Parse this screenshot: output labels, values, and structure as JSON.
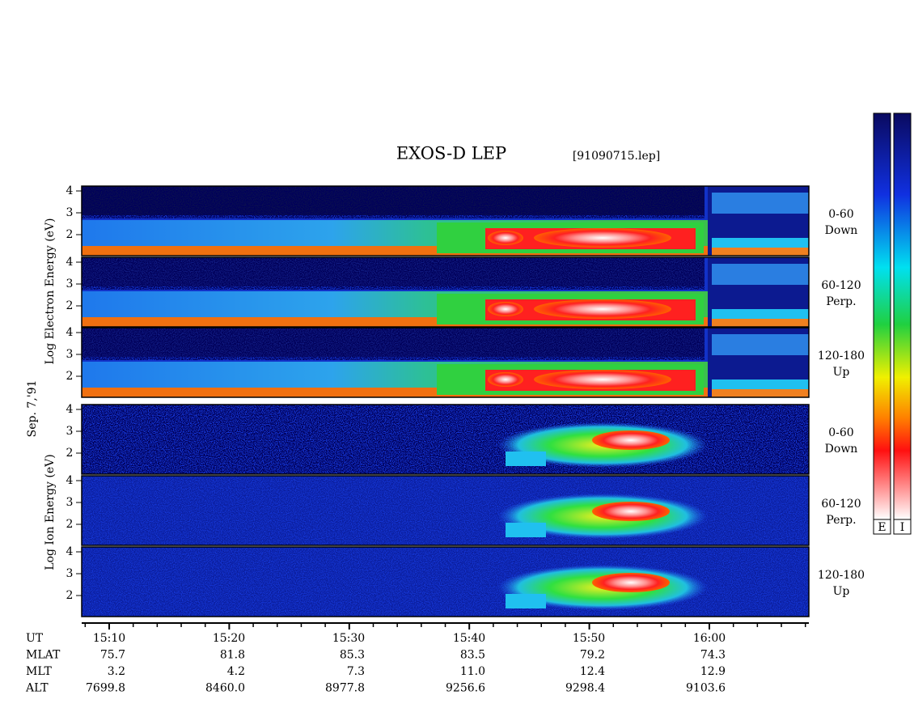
{
  "title": "EXOS-D LEP",
  "file": "[91090715.lep]",
  "date": "Sep. 7,'91",
  "electron_axis_label": "Log  Electron  Energy (eV)",
  "ion_axis_label": "Log  Ion  Energy (eV)",
  "panels": [
    {
      "species": "electron",
      "yticks": [
        "4",
        "3",
        "2"
      ],
      "label": [
        "0-60",
        "Down"
      ]
    },
    {
      "species": "electron",
      "yticks": [
        "4",
        "3",
        "2"
      ],
      "label": [
        "60-120",
        "Perp."
      ]
    },
    {
      "species": "electron",
      "yticks": [
        "4",
        "3",
        "2"
      ],
      "label": [
        "120-180",
        "Up"
      ]
    },
    {
      "species": "ion",
      "yticks": [
        "4",
        "3",
        "2"
      ],
      "label": [
        "0-60",
        "Down"
      ]
    },
    {
      "species": "ion",
      "yticks": [
        "4",
        "3",
        "2"
      ],
      "label": [
        "60-120",
        "Perp."
      ]
    },
    {
      "species": "ion",
      "yticks": [
        "4",
        "3",
        "2"
      ],
      "label": [
        "120-180",
        "Up"
      ]
    }
  ],
  "colorbars": [
    "E",
    "I"
  ],
  "rows": [
    {
      "name": "UT",
      "values": [
        "15:10",
        "15:20",
        "15:30",
        "15:40",
        "15:50",
        "16:00"
      ]
    },
    {
      "name": "MLAT",
      "values": [
        "75.7",
        "81.8",
        "85.3",
        "83.5",
        "79.2",
        "74.3"
      ]
    },
    {
      "name": "MLT",
      "values": [
        "3.2",
        "4.2",
        "7.3",
        "11.0",
        "12.4",
        "12.9"
      ]
    },
    {
      "name": "ALT",
      "values": [
        "7699.8",
        "8460.0",
        "8977.8",
        "9256.6",
        "9298.4",
        "9103.6"
      ]
    }
  ]
}
